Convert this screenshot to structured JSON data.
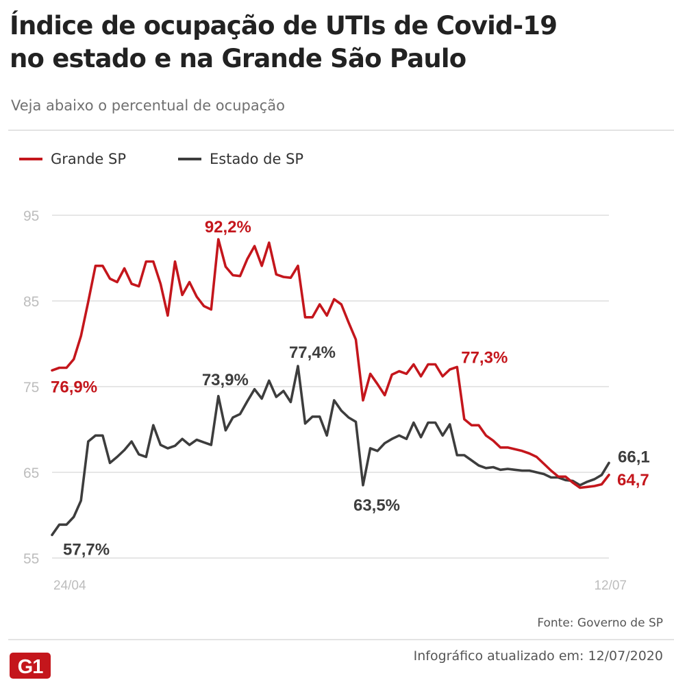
{
  "header": {
    "title_line1": "Índice de ocupação de UTIs de Covid-19",
    "title_line2": "no estado e na Grande São Paulo",
    "subtitle": "Veja abaixo o percentual de ocupação"
  },
  "legend": [
    {
      "label": "Grande SP",
      "color": "#c4161c"
    },
    {
      "label": "Estado de SP",
      "color": "#3d3d3d"
    }
  ],
  "chart_data": {
    "type": "line",
    "x_start_label": "24/04",
    "x_end_label": "12/07",
    "x_ticks": [
      "24/04",
      "12/07"
    ],
    "y_ticks": [
      95,
      85,
      75,
      65,
      55
    ],
    "ylim": [
      55,
      95
    ],
    "grid": true,
    "legend_position": "top-left",
    "series": [
      {
        "name": "Grande SP",
        "color": "#c4161c",
        "values": [
          76.9,
          77.2,
          77.2,
          78.2,
          80.9,
          84.9,
          89.1,
          89.1,
          87.6,
          87.2,
          88.8,
          87.0,
          86.7,
          89.6,
          89.6,
          87.0,
          83.3,
          89.6,
          85.7,
          87.2,
          85.5,
          84.4,
          84.0,
          92.2,
          89.0,
          88.0,
          87.9,
          89.9,
          91.4,
          89.1,
          91.8,
          88.1,
          87.8,
          87.7,
          89.1,
          83.1,
          83.1,
          84.6,
          83.3,
          85.2,
          84.6,
          82.5,
          80.5,
          73.4,
          76.5,
          75.3,
          74.0,
          76.4,
          76.8,
          76.5,
          77.6,
          76.2,
          77.6,
          77.6,
          76.2,
          77.0,
          77.3,
          71.2,
          70.5,
          70.5,
          69.3,
          68.7,
          67.9,
          67.9,
          67.7,
          67.5,
          67.2,
          66.8,
          66.0,
          65.2,
          64.5,
          64.5,
          63.8,
          63.2,
          63.3,
          63.4,
          63.6,
          64.7
        ],
        "labels": [
          {
            "index": 0,
            "text": "76,9%"
          },
          {
            "index": 23,
            "text": "92,2%"
          },
          {
            "index": 56,
            "text": "77,3%"
          },
          {
            "index": 77,
            "text": "64,7"
          }
        ]
      },
      {
        "name": "Estado de SP",
        "color": "#3d3d3d",
        "values": [
          57.7,
          58.9,
          58.9,
          59.8,
          61.7,
          68.6,
          69.3,
          69.3,
          66.1,
          66.8,
          67.6,
          68.6,
          67.1,
          66.8,
          70.5,
          68.2,
          67.8,
          68.1,
          68.9,
          68.2,
          68.8,
          68.5,
          68.2,
          73.9,
          69.9,
          71.4,
          71.8,
          73.3,
          74.7,
          73.6,
          75.7,
          73.8,
          74.5,
          73.2,
          77.4,
          70.7,
          71.5,
          71.5,
          69.3,
          73.4,
          72.2,
          71.4,
          70.9,
          63.5,
          67.8,
          67.5,
          68.4,
          68.9,
          69.3,
          68.9,
          70.8,
          69.1,
          70.8,
          70.8,
          69.3,
          70.6,
          67.0,
          67.0,
          66.4,
          65.8,
          65.5,
          65.6,
          65.3,
          65.4,
          65.3,
          65.2,
          65.2,
          65.0,
          64.8,
          64.4,
          64.4,
          64.1,
          64.0,
          63.5,
          63.9,
          64.2,
          64.7,
          66.1
        ],
        "labels": [
          {
            "index": 0,
            "text": "57,7%"
          },
          {
            "index": 23,
            "text": "73,9%"
          },
          {
            "index": 34,
            "text": "77,4%"
          },
          {
            "index": 43,
            "text": "63,5%"
          },
          {
            "index": 77,
            "text": "66,1"
          }
        ]
      }
    ]
  },
  "footer": {
    "source": "Fonte: Governo de SP",
    "logo_text": "G1",
    "logo_color": "#c4161c",
    "updated": "Infográfico atualizado em: 12/07/2020"
  }
}
